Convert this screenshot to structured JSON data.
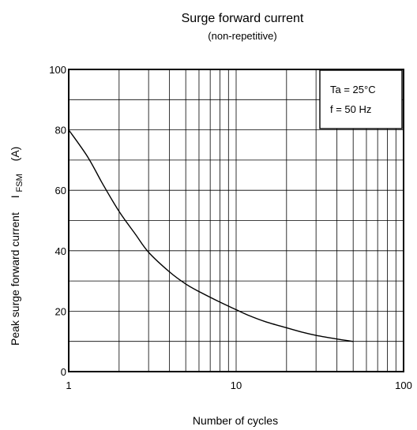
{
  "chart_data": {
    "type": "line",
    "title": "Surge forward current",
    "subtitle": "(non-repetitive)",
    "xlabel": "Number of cycles",
    "ylabel": {
      "main": "Peak surge forward current",
      "symbol": "I",
      "subscript": "FSM",
      "unit": "(A)"
    },
    "x_scale": "log",
    "xlim": [
      1,
      100
    ],
    "ylim": [
      0,
      100
    ],
    "x_ticks": [
      {
        "value": 1,
        "label": "1"
      },
      {
        "value": 10,
        "label": "10"
      },
      {
        "value": 100,
        "label": "100"
      }
    ],
    "y_ticks": [
      {
        "value": 0,
        "label": "0"
      },
      {
        "value": 20,
        "label": "20"
      },
      {
        "value": 40,
        "label": "40"
      },
      {
        "value": 60,
        "label": "60"
      },
      {
        "value": 80,
        "label": "80"
      },
      {
        "value": 100,
        "label": "100"
      }
    ],
    "grid": true,
    "annotations": [
      "Ta = 25°C",
      "f = 50 Hz"
    ],
    "legend_placement": "top-right",
    "series": [
      {
        "x": [
          1,
          1.3,
          1.6,
          2,
          2.5,
          3,
          4,
          5,
          6,
          8,
          10,
          12,
          15,
          20,
          25,
          30,
          40,
          50
        ],
        "y": [
          80,
          71,
          62,
          53,
          45.5,
          39.5,
          33,
          29,
          26.5,
          23,
          20.5,
          18.5,
          16.5,
          14.5,
          13,
          12,
          10.8,
          10
        ]
      }
    ]
  }
}
